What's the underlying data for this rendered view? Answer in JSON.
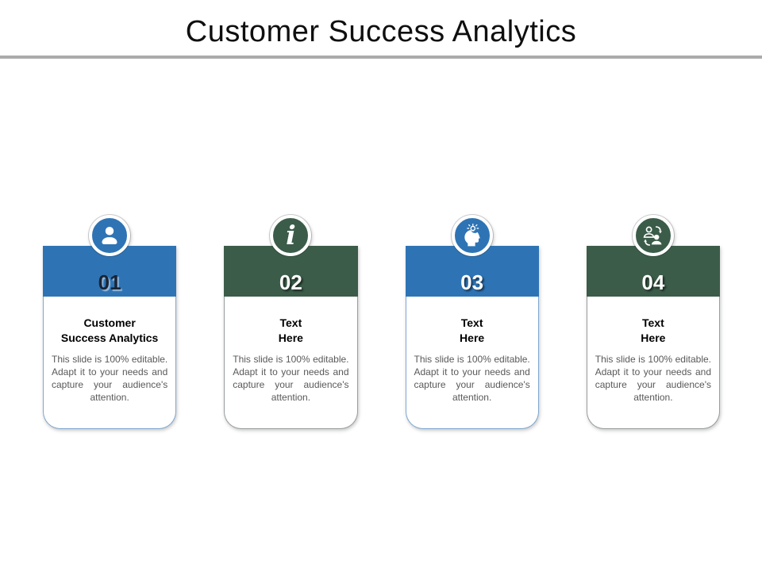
{
  "slide": {
    "title": "Customer Success Analytics"
  },
  "colors": {
    "blue": "#2E74B5",
    "green": "#3B5C49",
    "card_border_blue": "#7FA8D0",
    "card_border_gray": "#999E9E",
    "divider_gray": "#ABABAB",
    "number_dark": "#1B2433",
    "number_light": "#FFFFFF",
    "card_title_text": "#000000",
    "card_body_text": "#595959"
  },
  "cards": [
    {
      "number": "01",
      "theme": "blue",
      "number_style": "dark",
      "icon": "user-icon",
      "title_lines": [
        "Customer",
        "Success Analytics"
      ],
      "body": "This slide is 100% editable. Adapt it to your needs and capture your audience's attention."
    },
    {
      "number": "02",
      "theme": "green",
      "number_style": "light",
      "icon": "info-icon",
      "title_lines": [
        "Text",
        "Here"
      ],
      "body": "This slide is 100% editable. Adapt it to your needs and capture your audience's attention."
    },
    {
      "number": "03",
      "theme": "blue",
      "number_style": "light",
      "icon": "idea-head-icon",
      "title_lines": [
        "Text",
        "Here"
      ],
      "body": "This slide is 100% editable. Adapt it to your needs and capture your audience's attention."
    },
    {
      "number": "04",
      "theme": "green",
      "number_style": "light",
      "icon": "customer-exchange-icon",
      "title_lines": [
        "Text",
        "Here"
      ],
      "body": "This slide is 100% editable. Adapt it to your needs and capture your audience's attention."
    }
  ]
}
